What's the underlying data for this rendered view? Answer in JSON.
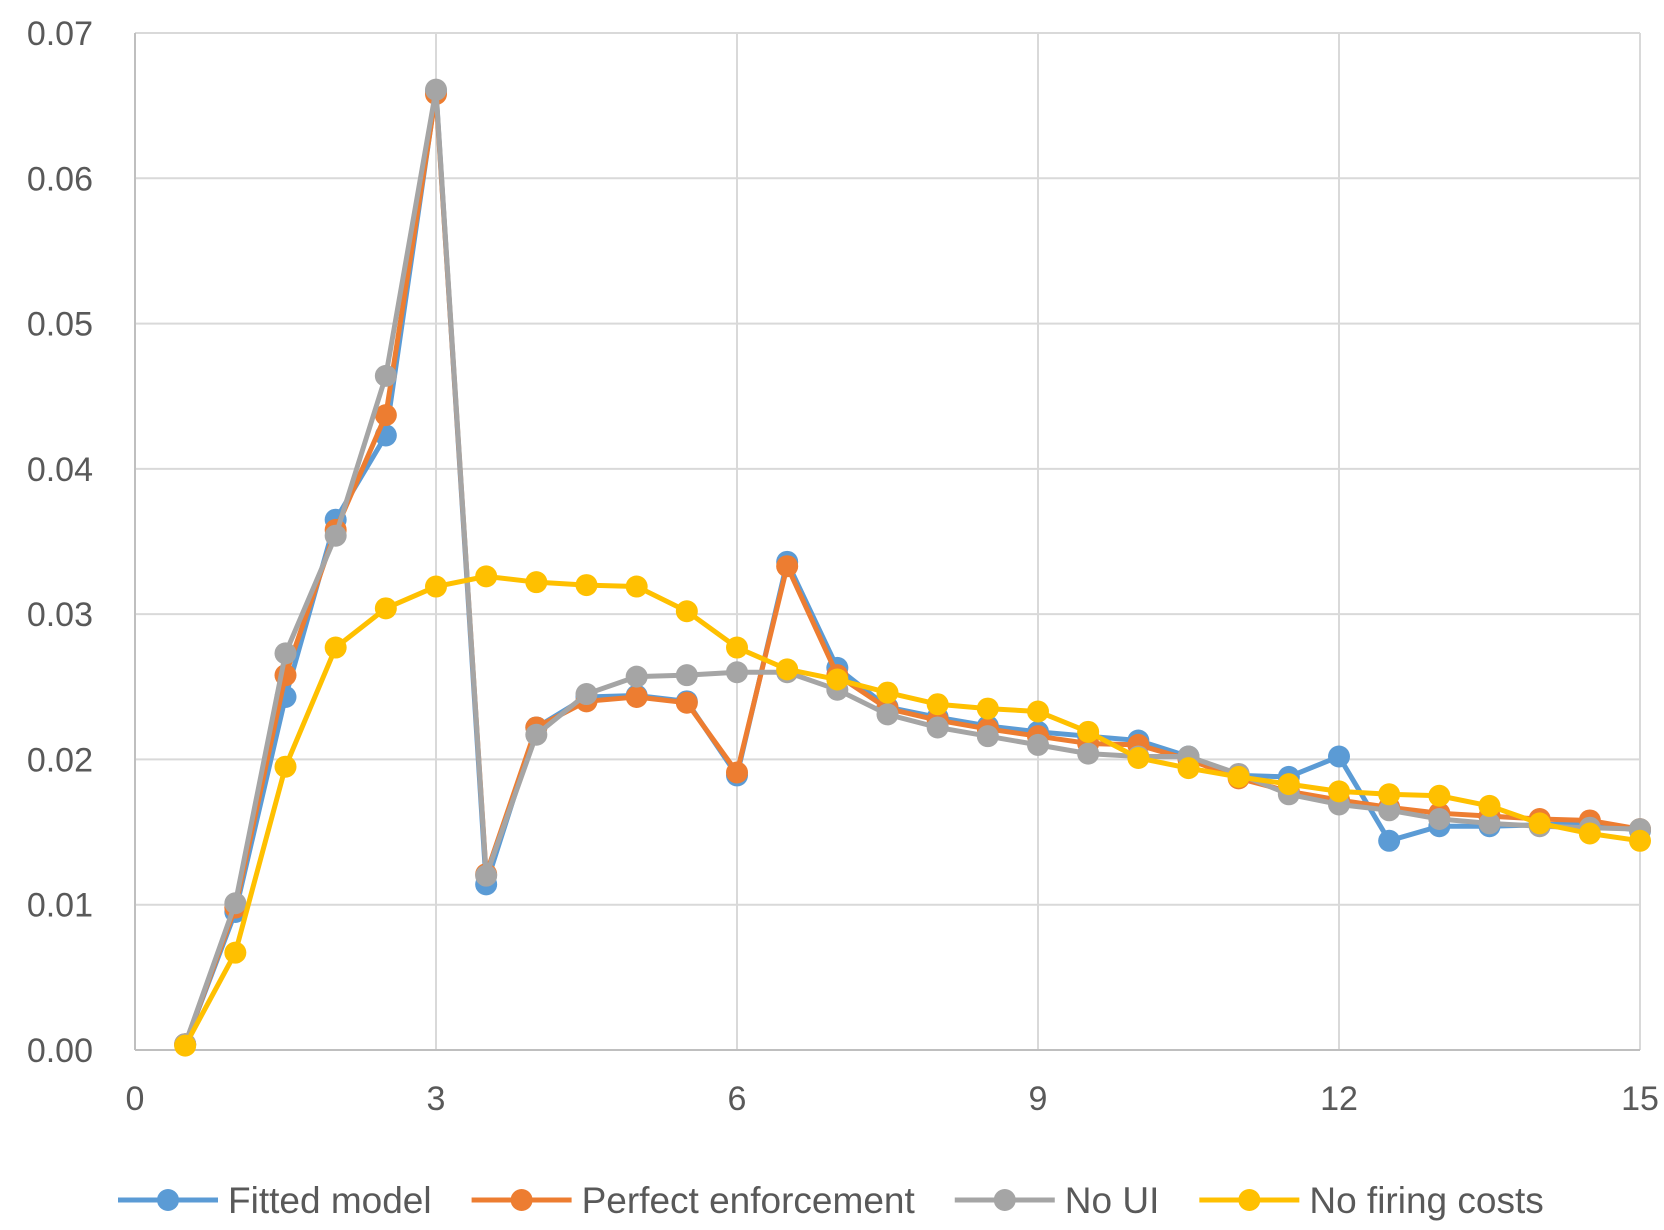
{
  "chart_data": {
    "type": "line",
    "title": "",
    "xlabel": "",
    "ylabel": "",
    "xlim": [
      0,
      15
    ],
    "ylim": [
      0,
      0.07
    ],
    "x_ticks": [
      0,
      3,
      6,
      9,
      12,
      15
    ],
    "x_tick_labels": [
      "0",
      "3",
      "6",
      "9",
      "12",
      "15"
    ],
    "y_ticks": [
      0,
      0.01,
      0.02,
      0.03,
      0.04,
      0.05,
      0.06,
      0.07
    ],
    "y_tick_labels": [
      "0.00",
      "0.01",
      "0.02",
      "0.03",
      "0.04",
      "0.05",
      "0.06",
      "0.07"
    ],
    "grid": true,
    "legend_position": "bottom",
    "x": [
      0.5,
      1,
      1.5,
      2,
      2.5,
      3,
      3.5,
      4,
      4.5,
      5,
      5.5,
      6,
      6.5,
      7,
      7.5,
      8,
      8.5,
      9,
      9.5,
      10,
      10.5,
      11,
      11.5,
      12,
      12.5,
      13,
      13.5,
      14,
      14.5,
      15
    ],
    "series": [
      {
        "name": "Fitted model",
        "color": "#5b9bd5",
        "values": [
          0.0004,
          0.0095,
          0.0243,
          0.0365,
          0.0423,
          0.066,
          0.0114,
          0.0222,
          0.0243,
          0.0244,
          0.024,
          0.0189,
          0.0336,
          0.0263,
          0.0236,
          0.0229,
          0.0223,
          0.0219,
          0.0216,
          0.0213,
          0.0202,
          0.0189,
          0.0188,
          0.0202,
          0.0144,
          0.0154,
          0.0154,
          0.0155,
          0.0156,
          0.0151
        ]
      },
      {
        "name": "Perfect enforcement",
        "color": "#ed7d31",
        "values": [
          0.0004,
          0.0098,
          0.0258,
          0.0358,
          0.0437,
          0.0658,
          0.0121,
          0.0222,
          0.024,
          0.0243,
          0.0239,
          0.0191,
          0.0333,
          0.0258,
          0.0235,
          0.0227,
          0.0221,
          0.0216,
          0.0211,
          0.021,
          0.02,
          0.0187,
          0.0178,
          0.0172,
          0.0167,
          0.0163,
          0.0161,
          0.0159,
          0.0158,
          0.0152
        ]
      },
      {
        "name": "No UI",
        "color": "#a5a5a5",
        "values": [
          0.0004,
          0.0101,
          0.0273,
          0.0354,
          0.0464,
          0.0661,
          0.012,
          0.0217,
          0.0245,
          0.0257,
          0.0258,
          0.026,
          0.026,
          0.0248,
          0.0231,
          0.0222,
          0.0216,
          0.021,
          0.0204,
          0.0202,
          0.0202,
          0.019,
          0.0176,
          0.0169,
          0.0165,
          0.0159,
          0.0156,
          0.0154,
          0.0153,
          0.0152
        ]
      },
      {
        "name": "No firing costs",
        "color": "#ffc000",
        "values": [
          0.0003,
          0.0067,
          0.0195,
          0.0277,
          0.0304,
          0.0319,
          0.0326,
          0.0322,
          0.032,
          0.0319,
          0.0302,
          0.0277,
          0.0262,
          0.0255,
          0.0246,
          0.0238,
          0.0235,
          0.0233,
          0.0219,
          0.0201,
          0.0194,
          0.0188,
          0.0183,
          0.0178,
          0.0176,
          0.0175,
          0.0168,
          0.0156,
          0.0149,
          0.0144
        ]
      }
    ]
  }
}
